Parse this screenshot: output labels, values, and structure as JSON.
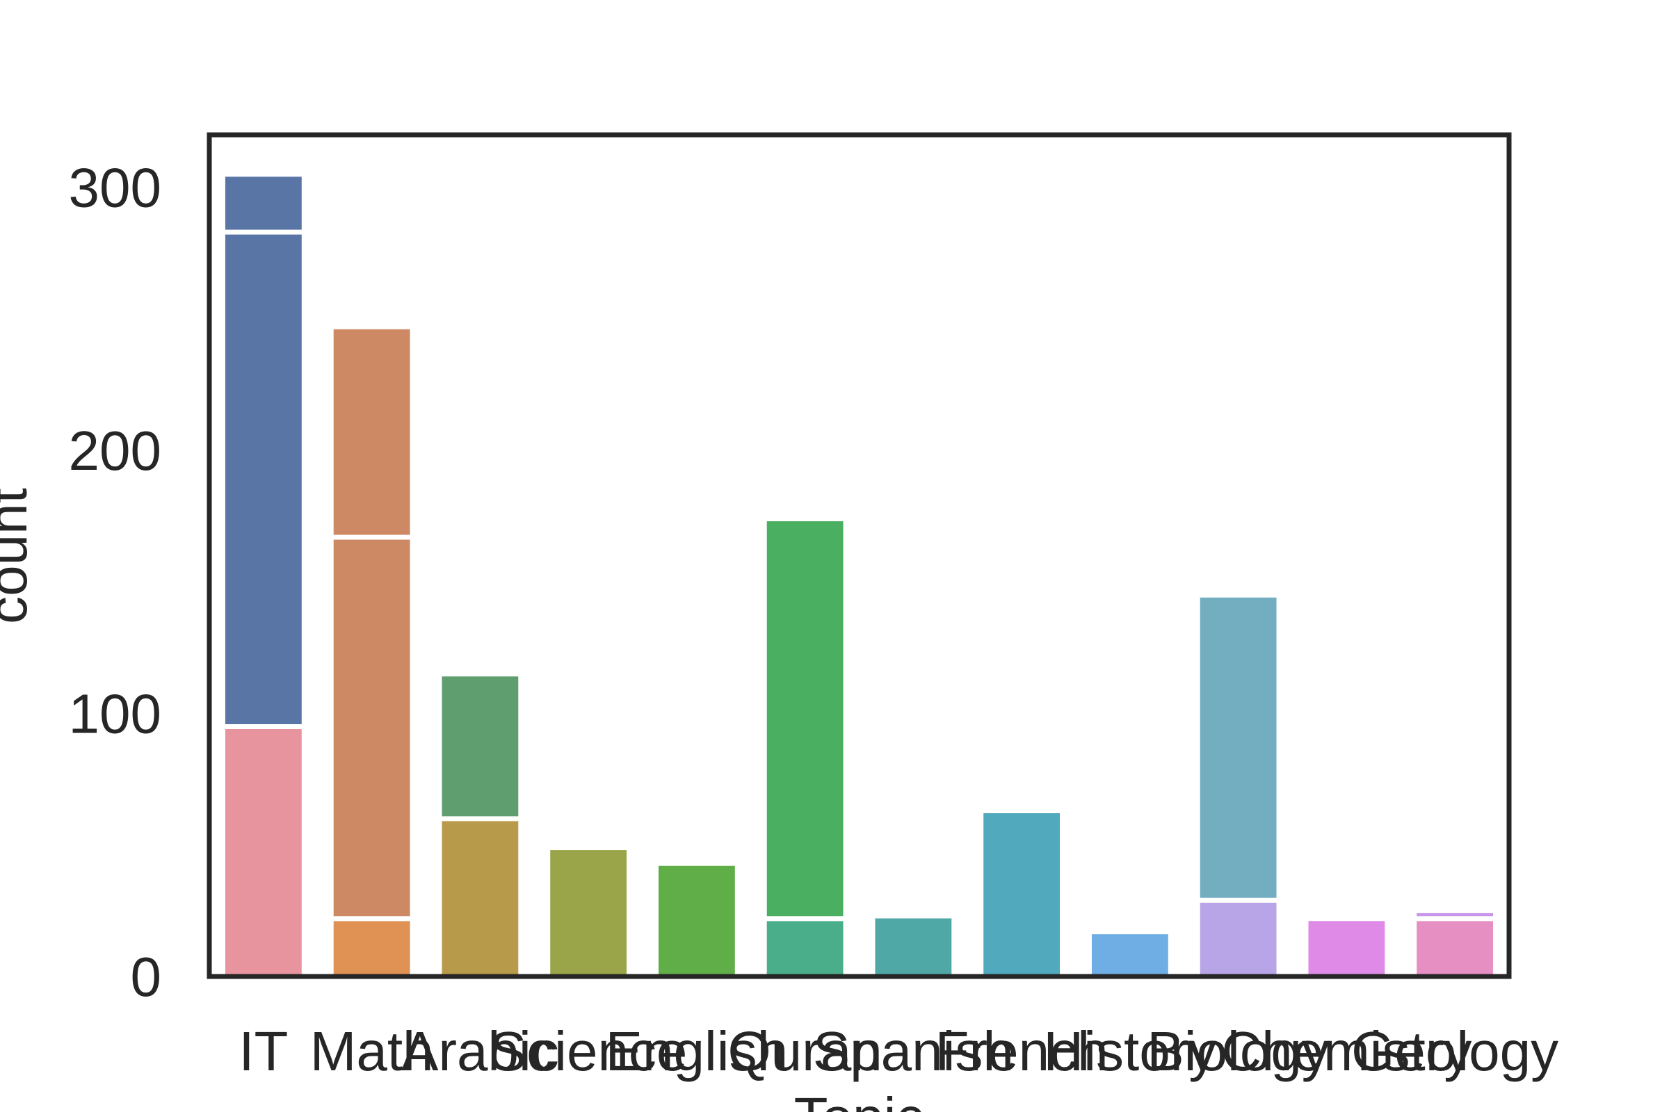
{
  "chart_data": {
    "type": "bar",
    "title": "",
    "xlabel": "Topic",
    "ylabel": "count",
    "ylim": [
      0,
      320
    ],
    "yticks": [
      0,
      100,
      200,
      300
    ],
    "grid": false,
    "legend": "none",
    "categories": [
      "IT",
      "Math",
      "Arabic",
      "Science",
      "English",
      "Quran",
      "Spanish",
      "French",
      "History",
      "Biology",
      "Chemistry",
      "Geology"
    ],
    "stacked_segments": [
      [
        {
          "value": 95,
          "color": "#e8949f"
        },
        {
          "value": 188,
          "color": "#5975a6"
        },
        {
          "value": 22,
          "color": "#5975a6"
        }
      ],
      [
        {
          "value": 22,
          "color": "#e09154"
        },
        {
          "value": 145,
          "color": "#cd8963"
        },
        {
          "value": 80,
          "color": "#cd8963"
        }
      ],
      [
        {
          "value": 60,
          "color": "#b89a4b"
        },
        {
          "value": 55,
          "color": "#5f9e6e"
        }
      ],
      [
        {
          "value": 49,
          "color": "#9aa549"
        }
      ],
      [
        {
          "value": 43,
          "color": "#60ae47"
        }
      ],
      [
        {
          "value": 22,
          "color": "#4aae8a"
        },
        {
          "value": 152,
          "color": "#4aaf60"
        }
      ],
      [
        {
          "value": 23,
          "color": "#4fa8a6"
        }
      ],
      [
        {
          "value": 63,
          "color": "#51a9bd"
        }
      ],
      [
        {
          "value": 17,
          "color": "#6eaee4"
        }
      ],
      [
        {
          "value": 29,
          "color": "#b7a5e7"
        },
        {
          "value": 116,
          "color": "#72adc0"
        }
      ],
      [
        {
          "value": 22,
          "color": "#e08ae8"
        }
      ],
      [
        {
          "value": 22,
          "color": "#e68fc2"
        },
        {
          "value": 3,
          "color": "#c696ea"
        }
      ]
    ],
    "axis_color": "#262626"
  }
}
